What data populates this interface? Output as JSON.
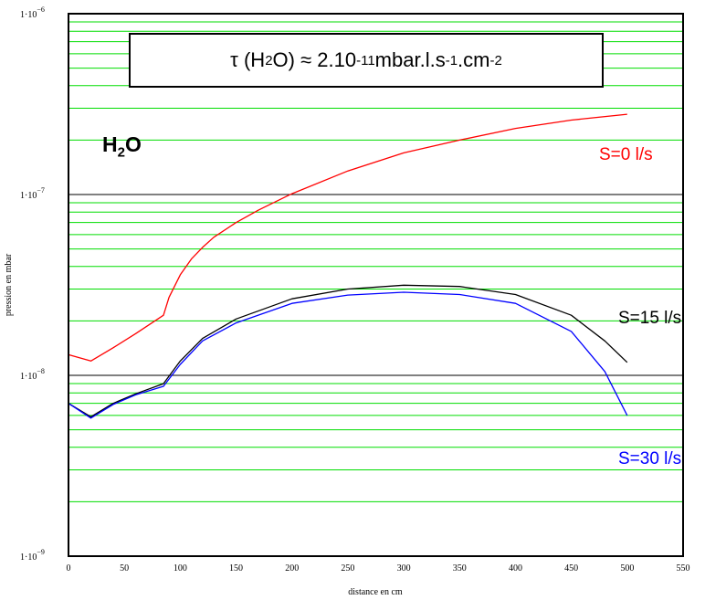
{
  "annotation": {
    "formula_prefix": "τ (H",
    "formula_sub2": "2",
    "formula_mid": "O) ≈ 2.10",
    "formula_exp1": "-11",
    "formula_unit1": " mbar.l.s",
    "formula_exp2": "-1",
    "formula_unit2": ".cm",
    "formula_exp3": "-2",
    "species_main": "H",
    "species_sub": "2",
    "species_end": "O"
  },
  "chart_data": {
    "type": "line",
    "xlabel": "distance en cm",
    "ylabel": "pression en mbar",
    "xlim": [
      0,
      550
    ],
    "ylim": [
      1e-09,
      1e-06
    ],
    "y_scale": "log",
    "xticks": [
      0,
      50,
      100,
      150,
      200,
      250,
      300,
      350,
      400,
      450,
      500,
      550
    ],
    "xtick_labels": [
      "0",
      "50",
      "100",
      "150",
      "200",
      "250",
      "300",
      "350",
      "400",
      "450",
      "500",
      "550"
    ],
    "yticks": [
      {
        "value": 1e-09,
        "base": "1·10",
        "exp": "−9"
      },
      {
        "value": 1e-08,
        "base": "1·10",
        "exp": "−8"
      },
      {
        "value": 1e-07,
        "base": "1·10",
        "exp": "−7"
      },
      {
        "value": 1e-06,
        "base": "1·10",
        "exp": "−6"
      }
    ],
    "grid": true,
    "grid_minor_color": "#00dd00",
    "grid_major_color": "#000000",
    "series": [
      {
        "name": "S=0 l/s",
        "color": "#ff0000",
        "label_color": "#ff0000",
        "x": [
          0,
          20,
          40,
          60,
          85,
          90,
          100,
          110,
          120,
          130,
          150,
          170,
          200,
          250,
          300,
          350,
          400,
          450,
          500
        ],
        "y": [
          1.3e-08,
          1.2e-08,
          1.42e-08,
          1.7e-08,
          2.15e-08,
          2.7e-08,
          3.6e-08,
          4.4e-08,
          5.1e-08,
          5.8e-08,
          7e-08,
          8.2e-08,
          1.01e-07,
          1.35e-07,
          1.7e-07,
          2e-07,
          2.32e-07,
          2.58e-07,
          2.78e-07
        ]
      },
      {
        "name": "S=15 l/s",
        "color": "#000000",
        "label_color": "#000000",
        "x": [
          0,
          20,
          40,
          60,
          85,
          100,
          120,
          150,
          200,
          250,
          300,
          350,
          400,
          450,
          480,
          500
        ],
        "y": [
          7e-09,
          5.9e-09,
          7e-09,
          7.9e-09,
          9e-09,
          1.2e-08,
          1.6e-08,
          2.05e-08,
          2.65e-08,
          3e-08,
          3.15e-08,
          3.1e-08,
          2.8e-08,
          2.15e-08,
          1.55e-08,
          1.18e-08
        ]
      },
      {
        "name": "S=30 l/s",
        "color": "#0000ff",
        "label_color": "#0000ff",
        "x": [
          0,
          20,
          40,
          60,
          85,
          100,
          120,
          150,
          200,
          250,
          300,
          350,
          400,
          450,
          480,
          500
        ],
        "y": [
          7e-09,
          5.8e-09,
          6.9e-09,
          7.8e-09,
          8.7e-09,
          1.15e-08,
          1.55e-08,
          1.95e-08,
          2.5e-08,
          2.78e-08,
          2.88e-08,
          2.8e-08,
          2.5e-08,
          1.75e-08,
          1.05e-08,
          6e-09
        ]
      }
    ]
  }
}
